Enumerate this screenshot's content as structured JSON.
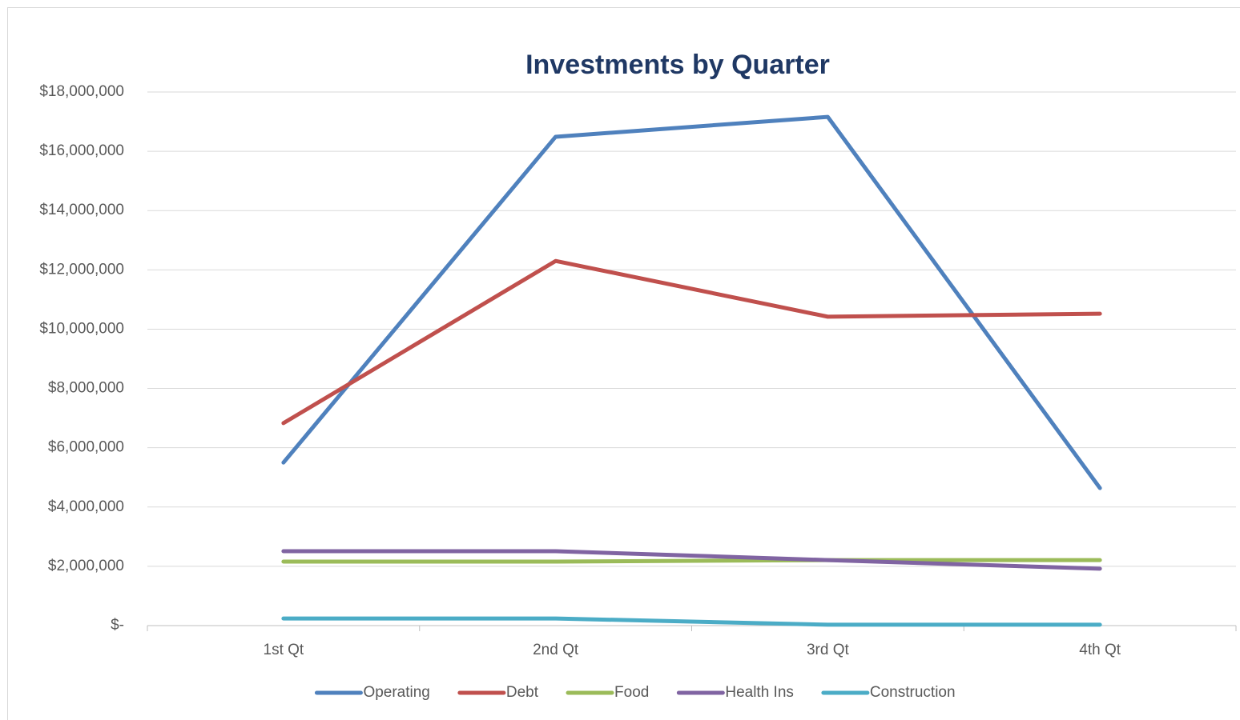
{
  "chart_data": {
    "type": "line",
    "title": "Investments by Quarter",
    "categories": [
      "1st Qt",
      "2nd Qt",
      "3rd Qt",
      "4th Qt"
    ],
    "series": [
      {
        "name": "Operating",
        "color": "#4f81bd",
        "values": [
          5500000,
          16490000,
          17160000,
          4640000
        ]
      },
      {
        "name": "Debt",
        "color": "#c0504d",
        "values": [
          6830000,
          12300000,
          10420000,
          10520000
        ]
      },
      {
        "name": "Food",
        "color": "#9bbb59",
        "values": [
          2160000,
          2160000,
          2210000,
          2210000
        ]
      },
      {
        "name": "Health Ins",
        "color": "#8064a2",
        "values": [
          2510000,
          2510000,
          2210000,
          1920000
        ]
      },
      {
        "name": "Construction",
        "color": "#4bacc6",
        "values": [
          240000,
          240000,
          30000,
          30000
        ]
      }
    ],
    "ylim": [
      0,
      18000000
    ],
    "yticks": [
      {
        "value": 0,
        "label": "$-"
      },
      {
        "value": 2000000,
        "label": "$2,000,000"
      },
      {
        "value": 4000000,
        "label": "$4,000,000"
      },
      {
        "value": 6000000,
        "label": "$6,000,000"
      },
      {
        "value": 8000000,
        "label": "$8,000,000"
      },
      {
        "value": 10000000,
        "label": "$10,000,000"
      },
      {
        "value": 12000000,
        "label": "$12,000,000"
      },
      {
        "value": 14000000,
        "label": "$14,000,000"
      },
      {
        "value": 16000000,
        "label": "$16,000,000"
      },
      {
        "value": 18000000,
        "label": "$18,000,000"
      }
    ],
    "grid": true,
    "legend": "bottom"
  }
}
